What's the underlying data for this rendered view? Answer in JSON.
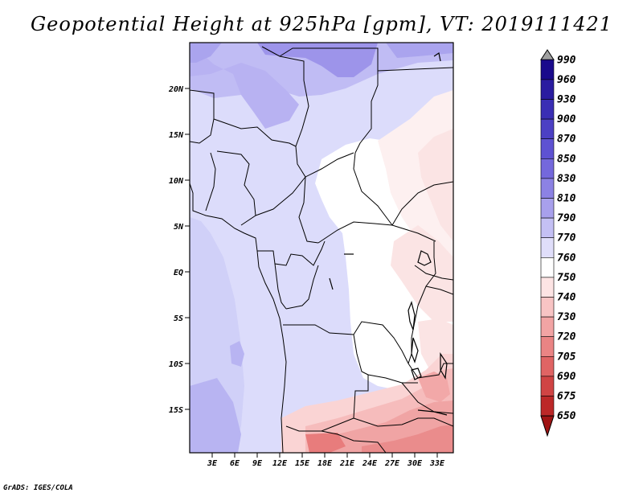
{
  "title": "Geopotential Height at 925hPa [gpm], VT: 2019111421",
  "credit": "GrADS: IGES/COLA",
  "lat_labels": [
    "20N",
    "15N",
    "10N",
    "5N",
    "EQ",
    "5S",
    "10S",
    "15S"
  ],
  "lon_labels": [
    "3E",
    "6E",
    "9E",
    "12E",
    "15E",
    "18E",
    "21E",
    "24E",
    "27E",
    "30E",
    "33E"
  ],
  "colorbar": {
    "levels": [
      "990",
      "960",
      "930",
      "900",
      "870",
      "850",
      "830",
      "810",
      "790",
      "770",
      "760",
      "750",
      "740",
      "730",
      "720",
      "705",
      "690",
      "675",
      "650"
    ],
    "colors": [
      "#a0a0a0",
      "#1a0a8c",
      "#2a1ca0",
      "#3a2eb4",
      "#4c40c4",
      "#5e52d2",
      "#7468dc",
      "#8c82e4",
      "#a8a0ec",
      "#c4c0f4",
      "#e0defa",
      "#ffffff",
      "#fde4e4",
      "#f8c4c4",
      "#f2a4a4",
      "#ea8484",
      "#e06464",
      "#d04444",
      "#bc2828",
      "#a01414"
    ]
  }
}
